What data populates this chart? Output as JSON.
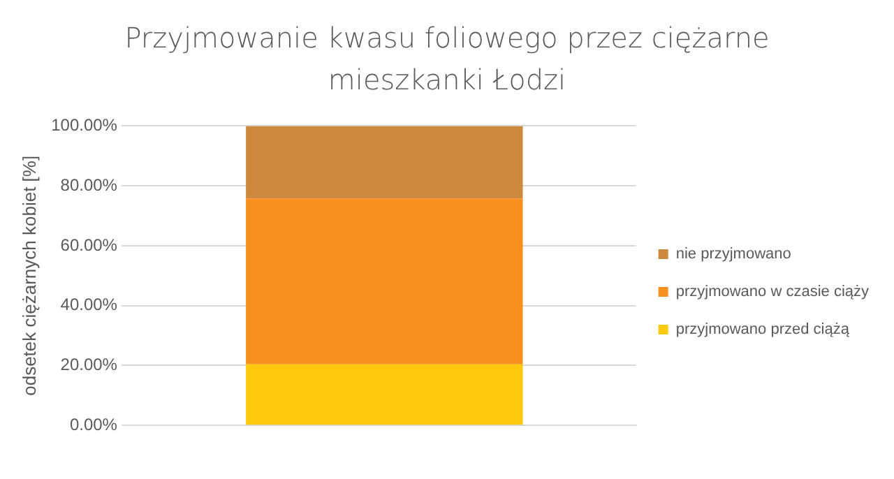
{
  "chart_data": {
    "type": "bar",
    "title": "Przyjmowanie kwasu foliowego przez ciężarne mieszkanki Łodzi",
    "ylabel": "odsetek ciężarnych kobiet [%]",
    "categories": [
      null
    ],
    "stacked": true,
    "series": [
      {
        "name": "przyjmowano przed ciążą",
        "color": "#ffc90e",
        "values": [
          20.4
        ]
      },
      {
        "name": "przyjmowano w czasie ciąży",
        "color": "#f7901e",
        "values": [
          55.4
        ]
      },
      {
        "name": "nie przyjmowano",
        "color": "#cd8a3e",
        "values": [
          24.2
        ]
      }
    ],
    "ylim": [
      0,
      100
    ],
    "yticks": [
      {
        "value": 0,
        "label": "0.00%"
      },
      {
        "value": 20,
        "label": "20.00%"
      },
      {
        "value": 40,
        "label": "40.00%"
      },
      {
        "value": 60,
        "label": "60.00%"
      },
      {
        "value": 80,
        "label": "80.00%"
      },
      {
        "value": 100,
        "label": "100.00%"
      }
    ],
    "grid": "y",
    "legend": "right"
  }
}
